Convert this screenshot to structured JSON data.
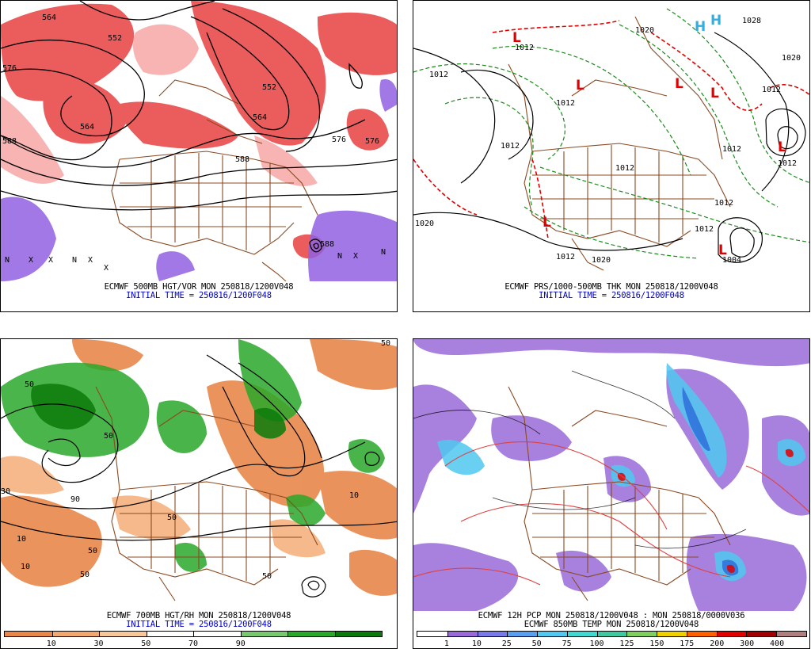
{
  "panels": [
    {
      "id": "p1",
      "caption_line1": "ECMWF 500MB HGT/VOR MON 250818/1200V048",
      "caption_line2": "INITIAL TIME = 250816/1200F048",
      "contour_labels": [
        "564",
        "552",
        "576",
        "588",
        "564",
        "552",
        "564",
        "576",
        "588",
        "588",
        "576"
      ]
    },
    {
      "id": "p2",
      "caption_line1": "ECMWF PRS/1000-500MB THK MON 250818/1200V048",
      "caption_line2": "INITIAL TIME = 250816/1200F048",
      "contour_labels": [
        "1012",
        "1012",
        "1020",
        "1012",
        "1012",
        "1012",
        "1020",
        "1012",
        "1012",
        "1020",
        "1028",
        "1012",
        "1020",
        "1012",
        "1012",
        "1004",
        "1012"
      ],
      "low_markers": [
        "L",
        "L",
        "L",
        "L",
        "L",
        "L",
        "L"
      ],
      "high_markers": [
        "H",
        "H"
      ]
    },
    {
      "id": "p3",
      "caption_line1": "ECMWF 700MB HGT/RH MON 250818/1200V048",
      "caption_line2": "INITIAL TIME = 250816/1200F048",
      "contour_labels": [
        "50",
        "50",
        "10",
        "30",
        "50",
        "10",
        "50",
        "10",
        "50",
        "90",
        "50",
        "50"
      ],
      "colorbar": {
        "ticks": [
          "10",
          "30",
          "50",
          "70",
          "90"
        ],
        "colors": [
          "#e8874a",
          "#f2a86e",
          "#f8c79a",
          "#ffffff",
          "#ffffff",
          "#78c870",
          "#2aa82a",
          "#0a7a0a"
        ]
      }
    },
    {
      "id": "p4",
      "caption_line1": "ECMWF 12H PCP MON 250818/1200V048 : MON 250818/0000V036",
      "caption_line2": "ECMWF 850MB TEMP MON 250818/1200V048",
      "colorbar": {
        "ticks": [
          "1",
          "10",
          "25",
          "50",
          "75",
          "100",
          "125",
          "150",
          "175",
          "200",
          "300",
          "400"
        ],
        "colors": [
          "#ffffff",
          "#9a6ad8",
          "#7a7ae8",
          "#5aa0f0",
          "#50c8f0",
          "#40d8d0",
          "#40c8a0",
          "#80d060",
          "#f0d000",
          "#ff6000",
          "#e00000",
          "#a00000",
          "#b08080"
        ]
      }
    }
  ]
}
